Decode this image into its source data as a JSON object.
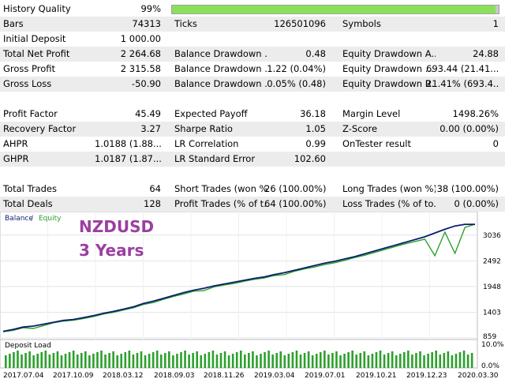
{
  "stats": {
    "history_quality": {
      "label": "History Quality",
      "value": "99%",
      "fraction": 0.99
    },
    "rows": [
      {
        "c1l": "Bars",
        "c1v": "74313",
        "c2l": "Ticks",
        "c2v": "126501096",
        "c3l": "Symbols",
        "c3v": "1"
      },
      {
        "c1l": "Initial Deposit",
        "c1v": "1 000.00",
        "c2l": "",
        "c2v": "",
        "c3l": "",
        "c3v": ""
      },
      {
        "c1l": "Total Net Profit",
        "c1v": "2 264.68",
        "c2l": "Balance Drawdown ...",
        "c2v": "0.48",
        "c3l": "Equity Drawdown A...",
        "c3v": "24.88"
      },
      {
        "c1l": "Gross Profit",
        "c1v": "2 315.58",
        "c2l": "Balance Drawdown ...",
        "c2v": "1.22 (0.04%)",
        "c3l": "Equity Drawdown ...",
        "c3v": "693.44 (21.41..."
      },
      {
        "c1l": "Gross Loss",
        "c1v": "-50.90",
        "c2l": "Balance Drawdown ...",
        "c2v": "0.05% (0.48)",
        "c3l": "Equity Drawdown R...",
        "c3v": "21.41% (693.4..."
      },
      {
        "c1l": "",
        "c1v": "",
        "c2l": "",
        "c2v": "",
        "c3l": "",
        "c3v": ""
      },
      {
        "c1l": "Profit Factor",
        "c1v": "45.49",
        "c2l": "Expected Payoff",
        "c2v": "36.18",
        "c3l": "Margin Level",
        "c3v": "1498.26%"
      },
      {
        "c1l": "Recovery Factor",
        "c1v": "3.27",
        "c2l": "Sharpe Ratio",
        "c2v": "1.05",
        "c3l": "Z-Score",
        "c3v": "0.00 (0.00%)"
      },
      {
        "c1l": "AHPR",
        "c1v": "1.0188 (1.88...",
        "c2l": "LR Correlation",
        "c2v": "0.99",
        "c3l": "OnTester result",
        "c3v": "0"
      },
      {
        "c1l": "GHPR",
        "c1v": "1.0187 (1.87...",
        "c2l": "LR Standard Error",
        "c2v": "102.60",
        "c3l": "",
        "c3v": ""
      },
      {
        "c1l": "",
        "c1v": "",
        "c2l": "",
        "c2v": "",
        "c3l": "",
        "c3v": ""
      },
      {
        "c1l": "Total Trades",
        "c1v": "64",
        "c2l": "Short Trades (won %)",
        "c2v": "26 (100.00%)",
        "c3l": "Long Trades (won %)",
        "c3v": "38 (100.00%)"
      },
      {
        "c1l": "Total Deals",
        "c1v": "128",
        "c2l": "Profit Trades (% of t...",
        "c2v": "64 (100.00%)",
        "c3l": "Loss Trades (% of to...",
        "c3v": "0 (0.00%)"
      }
    ]
  },
  "chart": {
    "legend_balance": "Balance",
    "legend_sep": " / ",
    "legend_equity": "Equity",
    "overlay_line1": "NZDUSD",
    "overlay_line2": "3 Years",
    "y_ticks": [
      "3036",
      "2492",
      "1948",
      "1403",
      "859"
    ],
    "colors": {
      "balance": "#0b1f6e",
      "equity": "#2ca02c",
      "overlay": "#9b3fa0",
      "grid": "#d8d8d8"
    }
  },
  "chart_data": {
    "type": "line",
    "title": "",
    "ylim": [
      859,
      3400
    ],
    "y_ticks": [
      859,
      1403,
      1948,
      2492,
      3036
    ],
    "series": [
      {
        "name": "Balance",
        "values": [
          1000,
          1040,
          1090,
          1110,
          1150,
          1190,
          1230,
          1250,
          1290,
          1330,
          1380,
          1420,
          1470,
          1520,
          1590,
          1640,
          1700,
          1760,
          1820,
          1870,
          1910,
          1960,
          2000,
          2040,
          2080,
          2120,
          2150,
          2200,
          2240,
          2290,
          2340,
          2390,
          2440,
          2480,
          2530,
          2580,
          2640,
          2700,
          2760,
          2820,
          2880,
          2940,
          3000,
          3080,
          3160,
          3230,
          3264,
          3264
        ]
      },
      {
        "name": "Equity",
        "values": [
          990,
          1020,
          1075,
          1060,
          1120,
          1180,
          1215,
          1235,
          1270,
          1310,
          1365,
          1400,
          1450,
          1500,
          1570,
          1610,
          1680,
          1740,
          1790,
          1850,
          1860,
          1940,
          1980,
          2010,
          2060,
          2100,
          2130,
          2180,
          2200,
          2270,
          2320,
          2360,
          2410,
          2450,
          2500,
          2560,
          2610,
          2670,
          2730,
          2790,
          2850,
          2900,
          2950,
          2600,
          3100,
          2650,
          3200,
          3264
        ]
      }
    ]
  },
  "deposit": {
    "title": "Deposit Load",
    "y_ticks": [
      "10.0%",
      "0.0%"
    ],
    "x_dates": [
      "2017.07.04",
      "2017.10.09",
      "2018.03.12",
      "2018.09.03",
      "2018.11.26",
      "2019.03.04",
      "2019.07.01",
      "2019.10.21",
      "2019.12.23",
      "2020.03.30"
    ],
    "bar_color": "#2ca02c"
  }
}
